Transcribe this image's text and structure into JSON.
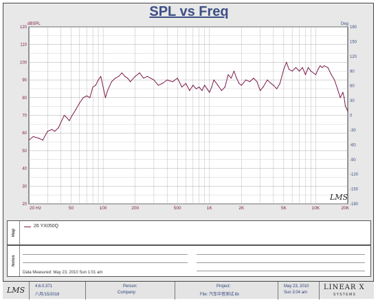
{
  "chart_data": {
    "type": "line",
    "title": "SPL vs Freq",
    "ylabel_left": "dBSPL",
    "ylabel_right": "Deg",
    "xscale": "log",
    "xlim": [
      20,
      20000
    ],
    "ylim": [
      20,
      120
    ],
    "ylim_right": [
      -180,
      180
    ],
    "x_ticks": [
      20,
      50,
      100,
      200,
      500,
      1000,
      2000,
      5000,
      10000,
      20000
    ],
    "x_tick_labels": [
      "20 Hz",
      "50",
      "100",
      "200",
      "500",
      "1K",
      "2K",
      "5K",
      "10K",
      "20K"
    ],
    "y_ticks": [
      20,
      30,
      40,
      50,
      60,
      70,
      80,
      90,
      100,
      110,
      120
    ],
    "y_right_ticks": [
      -180,
      -150,
      -120,
      -90,
      -60,
      -30,
      0,
      30,
      60,
      90,
      120,
      150,
      180
    ],
    "grid": true,
    "series": [
      {
        "name": "26 YX050Q",
        "color": "#7a1a4a",
        "points": [
          [
            20,
            56
          ],
          [
            22,
            58
          ],
          [
            25,
            57
          ],
          [
            27,
            56
          ],
          [
            30,
            61
          ],
          [
            33,
            62
          ],
          [
            35,
            61
          ],
          [
            38,
            63
          ],
          [
            40,
            66
          ],
          [
            43,
            70
          ],
          [
            45,
            69
          ],
          [
            48,
            67
          ],
          [
            50,
            69
          ],
          [
            55,
            73
          ],
          [
            60,
            77
          ],
          [
            65,
            80
          ],
          [
            70,
            81
          ],
          [
            75,
            80
          ],
          [
            80,
            86
          ],
          [
            85,
            87
          ],
          [
            90,
            90
          ],
          [
            95,
            92
          ],
          [
            100,
            86
          ],
          [
            105,
            80
          ],
          [
            110,
            84
          ],
          [
            120,
            89
          ],
          [
            130,
            91
          ],
          [
            140,
            92
          ],
          [
            150,
            94
          ],
          [
            160,
            92
          ],
          [
            170,
            91
          ],
          [
            180,
            89
          ],
          [
            200,
            92
          ],
          [
            220,
            94
          ],
          [
            240,
            91
          ],
          [
            260,
            92
          ],
          [
            280,
            91
          ],
          [
            300,
            90
          ],
          [
            330,
            87
          ],
          [
            360,
            88
          ],
          [
            400,
            90
          ],
          [
            450,
            89
          ],
          [
            500,
            91
          ],
          [
            550,
            86
          ],
          [
            600,
            88
          ],
          [
            650,
            84
          ],
          [
            700,
            87
          ],
          [
            750,
            85
          ],
          [
            800,
            86
          ],
          [
            850,
            84
          ],
          [
            900,
            87
          ],
          [
            950,
            85
          ],
          [
            1000,
            83
          ],
          [
            1050,
            86
          ],
          [
            1100,
            90
          ],
          [
            1200,
            87
          ],
          [
            1300,
            84
          ],
          [
            1400,
            86
          ],
          [
            1500,
            93
          ],
          [
            1600,
            91
          ],
          [
            1700,
            95
          ],
          [
            1800,
            91
          ],
          [
            1900,
            88
          ],
          [
            2000,
            87
          ],
          [
            2200,
            90
          ],
          [
            2400,
            89
          ],
          [
            2600,
            91
          ],
          [
            2800,
            89
          ],
          [
            3000,
            84
          ],
          [
            3200,
            86
          ],
          [
            3500,
            90
          ],
          [
            3800,
            88
          ],
          [
            4000,
            87
          ],
          [
            4300,
            85
          ],
          [
            4600,
            88
          ],
          [
            5000,
            96
          ],
          [
            5300,
            100
          ],
          [
            5600,
            96
          ],
          [
            6000,
            95
          ],
          [
            6500,
            97
          ],
          [
            7000,
            95
          ],
          [
            7500,
            97
          ],
          [
            8000,
            93
          ],
          [
            8500,
            97
          ],
          [
            9000,
            95
          ],
          [
            10000,
            93
          ],
          [
            10500,
            96
          ],
          [
            11000,
            98
          ],
          [
            11500,
            97
          ],
          [
            12000,
            98
          ],
          [
            13000,
            97
          ],
          [
            14000,
            93
          ],
          [
            15000,
            90
          ],
          [
            16000,
            85
          ],
          [
            17000,
            80
          ],
          [
            18000,
            83
          ],
          [
            18500,
            80
          ],
          [
            19000,
            75
          ],
          [
            19500,
            74
          ],
          [
            20000,
            72
          ]
        ]
      }
    ]
  },
  "legend": {
    "label": "26 YX050Q"
  },
  "watermark": "LMS",
  "panels": {
    "map_label": "Map",
    "notes_label": "Notes",
    "data_measured": "Data Measured: May 23, 2010  Sun  1:01 am"
  },
  "footer": {
    "logo": "LMS",
    "version": "4.6.0.371",
    "version_date": "八月/15/2018",
    "person_label": "Person:",
    "company_label": "Company:",
    "project_label": "Project:",
    "file_label": "File: 汽车中音测试.lib",
    "date": "May 23, 2010",
    "time": "Sun  3:04 am",
    "brand": "LINEAR X",
    "brand_sub": "S Y S T E M S"
  }
}
